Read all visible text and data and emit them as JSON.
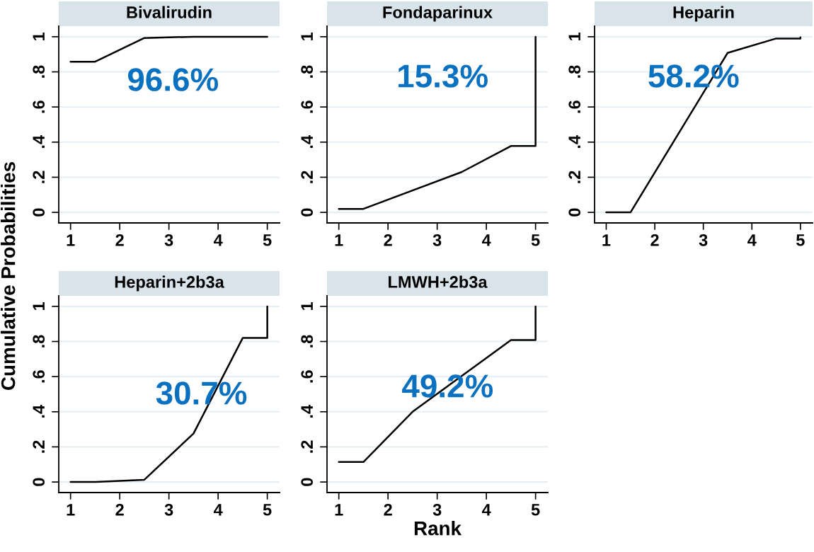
{
  "chart_data": [
    {
      "type": "line",
      "title": "Bivalirudin",
      "ylabel": "Cumulative Probabilities",
      "x": [
        1,
        1.5,
        2.5,
        3.5,
        5
      ],
      "series": [
        {
          "color": "#000000",
          "values": [
            0.858,
            0.858,
            0.993,
            1.0,
            1.0
          ]
        }
      ],
      "xlim": [
        0.76,
        5.25
      ],
      "ylim": [
        -0.06,
        1.06
      ],
      "xticks": [
        1,
        2,
        3,
        4,
        5
      ],
      "yticks": [
        0,
        {
          "value": 0.2,
          "label": ".2"
        },
        {
          "value": 0.4,
          "label": ".4"
        },
        {
          "value": 0.6,
          "label": ".6"
        },
        {
          "value": 0.8,
          "label": ".8"
        },
        1
      ],
      "grid": "y",
      "annotations": [
        "96.6%"
      ]
    },
    {
      "type": "line",
      "title": "Fondaparinux",
      "x": [
        1,
        1.5,
        3.5,
        4.5,
        5,
        5
      ],
      "series": [
        {
          "color": "#000000",
          "values": [
            0.02,
            0.02,
            0.23,
            0.378,
            0.378,
            1.0
          ]
        }
      ],
      "xlim": [
        0.76,
        5.25
      ],
      "ylim": [
        -0.06,
        1.06
      ],
      "xticks": [
        1,
        2,
        3,
        4,
        5
      ],
      "yticks": [
        0,
        {
          "value": 0.2,
          "label": ".2"
        },
        {
          "value": 0.4,
          "label": ".4"
        },
        {
          "value": 0.6,
          "label": ".6"
        },
        {
          "value": 0.8,
          "label": ".8"
        },
        1
      ],
      "grid": "y",
      "annotations": [
        "15.3%"
      ]
    },
    {
      "type": "line",
      "title": "Heparin",
      "x": [
        1,
        1.5,
        3.5,
        4.5,
        5,
        5
      ],
      "series": [
        {
          "color": "#000000",
          "values": [
            0.0,
            0.0,
            0.908,
            0.99,
            0.99,
            0.997
          ]
        }
      ],
      "xlim": [
        0.76,
        5.25
      ],
      "ylim": [
        -0.06,
        1.06
      ],
      "xticks": [
        1,
        2,
        3,
        4,
        5
      ],
      "yticks": [
        0,
        {
          "value": 0.2,
          "label": ".2"
        },
        {
          "value": 0.4,
          "label": ".4"
        },
        {
          "value": 0.6,
          "label": ".6"
        },
        {
          "value": 0.8,
          "label": ".8"
        },
        1
      ],
      "grid": "y",
      "annotations": [
        "58.2%"
      ]
    },
    {
      "type": "line",
      "title": "Heparin+2b3a",
      "x": [
        1,
        1.5,
        2.5,
        3.5,
        4.5,
        5,
        5
      ],
      "series": [
        {
          "color": "#000000",
          "values": [
            0.0,
            0.0,
            0.013,
            0.276,
            0.82,
            0.82,
            1.0
          ]
        }
      ],
      "xlim": [
        0.76,
        5.25
      ],
      "ylim": [
        -0.06,
        1.06
      ],
      "xticks": [
        1,
        2,
        3,
        4,
        5
      ],
      "yticks": [
        0,
        {
          "value": 0.2,
          "label": ".2"
        },
        {
          "value": 0.4,
          "label": ".4"
        },
        {
          "value": 0.6,
          "label": ".6"
        },
        {
          "value": 0.8,
          "label": ".8"
        },
        1
      ],
      "grid": "y",
      "annotations": [
        "30.7%"
      ]
    },
    {
      "type": "line",
      "title": "LMWH+2b3a",
      "xlabel": "Rank",
      "x": [
        1,
        1.5,
        2.5,
        4.5,
        5,
        5
      ],
      "series": [
        {
          "color": "#000000",
          "values": [
            0.114,
            0.114,
            0.4,
            0.808,
            0.808,
            1.0
          ]
        }
      ],
      "xlim": [
        0.76,
        5.25
      ],
      "ylim": [
        -0.06,
        1.06
      ],
      "xticks": [
        1,
        2,
        3,
        4,
        5
      ],
      "yticks": [
        0,
        {
          "value": 0.2,
          "label": ".2"
        },
        {
          "value": 0.4,
          "label": ".4"
        },
        {
          "value": 0.6,
          "label": ".6"
        },
        {
          "value": 0.8,
          "label": ".8"
        },
        1
      ],
      "grid": "y",
      "annotations": [
        "49.2%"
      ]
    }
  ]
}
